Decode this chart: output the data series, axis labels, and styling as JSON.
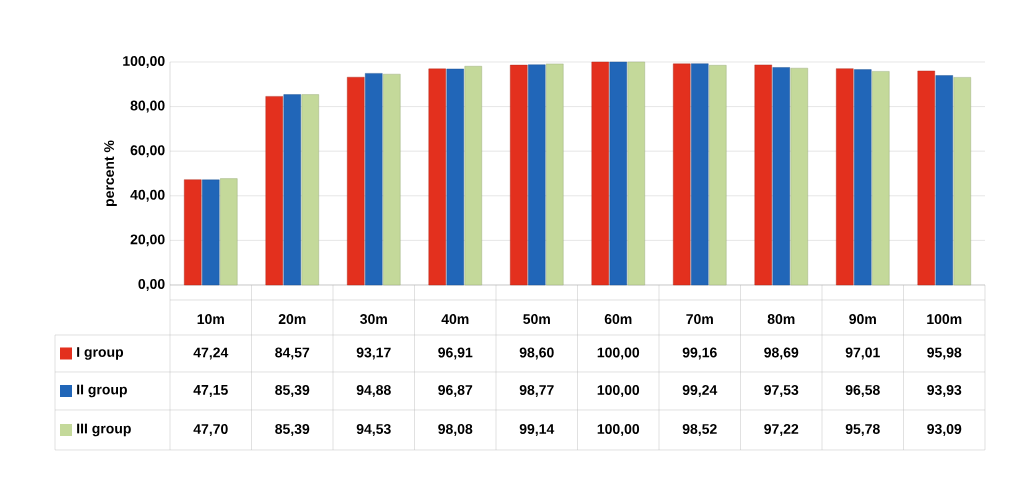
{
  "chart_data": {
    "type": "bar",
    "ylabel": "percent %",
    "categories": [
      "10m",
      "20m",
      "30m",
      "40m",
      "50m",
      "60m",
      "70m",
      "80m",
      "90m",
      "100m"
    ],
    "series": [
      {
        "name": "I group",
        "color": "#e3301e",
        "values": [
          47.24,
          84.57,
          93.17,
          96.91,
          98.6,
          100.0,
          99.16,
          98.69,
          97.01,
          95.98
        ],
        "value_labels": [
          "47,24",
          "84,57",
          "93,17",
          "96,91",
          "98,60",
          "100,00",
          "99,16",
          "98,69",
          "97,01",
          "95,98"
        ]
      },
      {
        "name": "II group",
        "color": "#2166b8",
        "values": [
          47.15,
          85.39,
          94.88,
          96.87,
          98.77,
          100.0,
          99.24,
          97.53,
          96.58,
          93.93
        ],
        "value_labels": [
          "47,15",
          "85,39",
          "94,88",
          "96,87",
          "98,77",
          "100,00",
          "99,24",
          "97,53",
          "96,58",
          "93,93"
        ]
      },
      {
        "name": "III group",
        "color": "#c4d99a",
        "values": [
          47.7,
          85.39,
          94.53,
          98.08,
          99.14,
          100.0,
          98.52,
          97.22,
          95.78,
          93.09
        ],
        "value_labels": [
          "47,70",
          "85,39",
          "94,53",
          "98,08",
          "99,14",
          "100,00",
          "98,52",
          "97,22",
          "95,78",
          "93,09"
        ]
      }
    ],
    "ylim": [
      0,
      100
    ],
    "yticks": [
      {
        "value": 0,
        "label": "0,00"
      },
      {
        "value": 20,
        "label": "20,00"
      },
      {
        "value": 40,
        "label": "40,00"
      },
      {
        "value": 60,
        "label": "60,00"
      },
      {
        "value": 80,
        "label": "80,00"
      },
      {
        "value": 100,
        "label": "100,00"
      }
    ],
    "grid": "y",
    "legend": "bottom"
  }
}
